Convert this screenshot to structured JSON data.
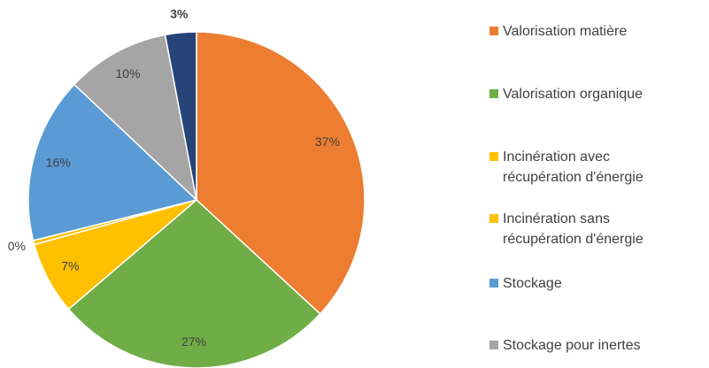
{
  "chart_data": {
    "type": "pie",
    "categories": [
      "Valorisation matière",
      "Valorisation organique",
      "Incinération avec\nrécupération d'énergie",
      "Incinération sans\nrécupération d'énergie",
      "Stockage",
      "Stockage pour inertes",
      null
    ],
    "values": [
      37,
      27,
      7,
      0.4,
      16,
      10,
      3
    ],
    "value_labels": [
      "37%",
      "27%",
      "7%",
      "0%",
      "16%",
      "10%",
      "3%"
    ],
    "value_label_bold": [
      false,
      false,
      false,
      false,
      false,
      false,
      true
    ],
    "colors": [
      "#ED7D31",
      "#70AD47",
      "#FFC000",
      "#FFC000",
      "#5B9BD5",
      "#A5A5A5",
      "#264478"
    ],
    "legend": "right"
  }
}
